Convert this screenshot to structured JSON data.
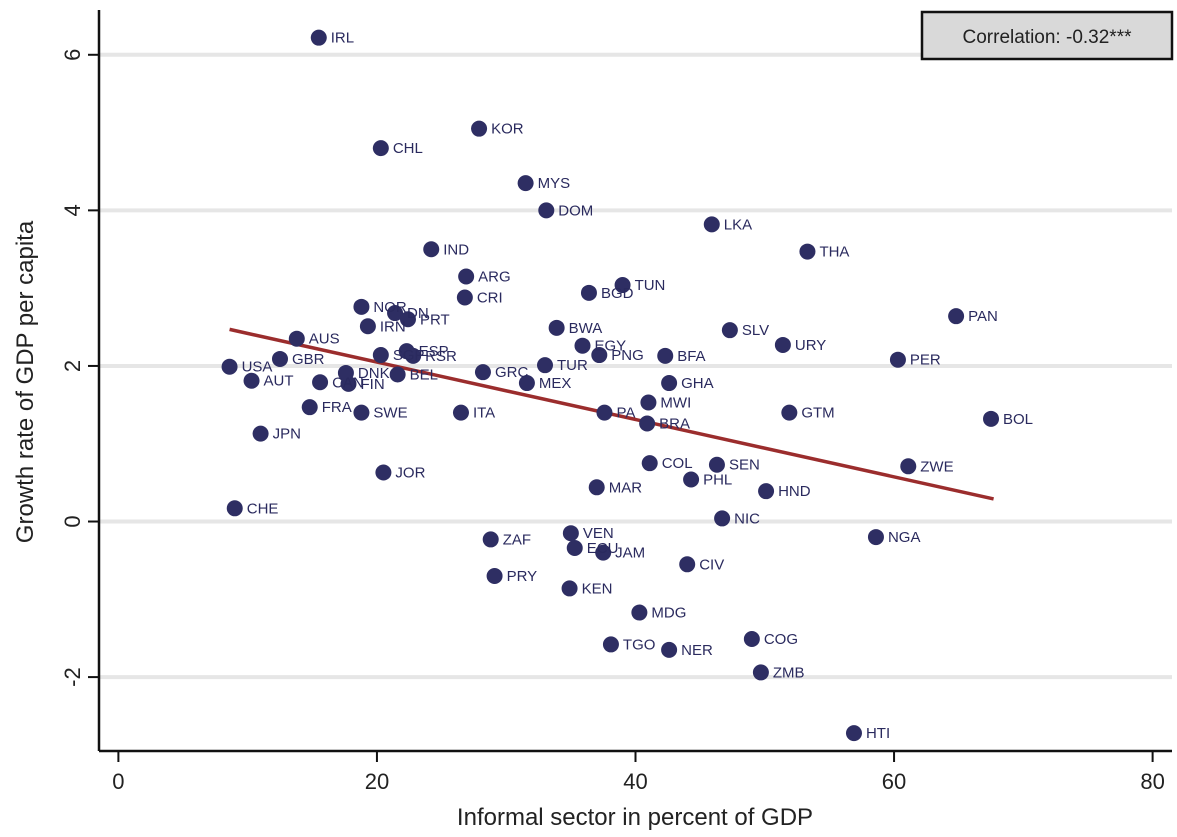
{
  "chart_data": {
    "type": "scatter",
    "xlabel": "Informal sector in percent of GDP",
    "ylabel": "Growth rate of GDP per capita",
    "xlim": [
      -1.5,
      81.5
    ],
    "ylim": [
      -2.95,
      6.55
    ],
    "xticks": [
      0,
      20,
      40,
      60,
      80
    ],
    "yticks": [
      -2,
      0,
      2,
      4,
      6
    ],
    "grid": "horizontal",
    "annotation": "Correlation: -0.32***",
    "point_color": "#2e2e63",
    "fit_color": "#9b2d2d",
    "fit_line": {
      "x": [
        8.6,
        67.7
      ],
      "y": [
        2.47,
        0.29
      ]
    },
    "points": [
      {
        "label": "IRL",
        "x": 15.5,
        "y": 6.22
      },
      {
        "label": "KOR",
        "x": 27.9,
        "y": 5.05
      },
      {
        "label": "CHL",
        "x": 20.3,
        "y": 4.8
      },
      {
        "label": "MYS",
        "x": 31.5,
        "y": 4.35
      },
      {
        "label": "DOM",
        "x": 33.1,
        "y": 4.0
      },
      {
        "label": "LKA",
        "x": 45.9,
        "y": 3.82
      },
      {
        "label": "THA",
        "x": 53.3,
        "y": 3.47
      },
      {
        "label": "IND",
        "x": 24.2,
        "y": 3.5
      },
      {
        "label": "ARG",
        "x": 26.9,
        "y": 3.15
      },
      {
        "label": "TUN",
        "x": 39.0,
        "y": 3.04
      },
      {
        "label": "BGD",
        "x": 36.4,
        "y": 2.94
      },
      {
        "label": "CRI",
        "x": 26.8,
        "y": 2.88
      },
      {
        "label": "NOR",
        "x": 18.8,
        "y": 2.76
      },
      {
        "label": "DN",
        "x": 21.4,
        "y": 2.68
      },
      {
        "label": "PRT",
        "x": 22.4,
        "y": 2.6
      },
      {
        "label": "IRN",
        "x": 19.3,
        "y": 2.51
      },
      {
        "label": "PAN",
        "x": 64.8,
        "y": 2.64
      },
      {
        "label": "BWA",
        "x": 33.9,
        "y": 2.49
      },
      {
        "label": "SLV",
        "x": 47.3,
        "y": 2.46
      },
      {
        "label": "AUS",
        "x": 13.8,
        "y": 2.35
      },
      {
        "label": "URY",
        "x": 51.4,
        "y": 2.27
      },
      {
        "label": "EGY",
        "x": 35.9,
        "y": 2.26
      },
      {
        "label": "ESP",
        "x": 22.3,
        "y": 2.19
      },
      {
        "label": "PNG",
        "x": 37.2,
        "y": 2.14
      },
      {
        "label": "BFA",
        "x": 42.3,
        "y": 2.13
      },
      {
        "label": "RSR",
        "x": 22.8,
        "y": 2.13
      },
      {
        "label": "SGP",
        "x": 20.3,
        "y": 2.14
      },
      {
        "label": "PER",
        "x": 60.3,
        "y": 2.08
      },
      {
        "label": "GBR",
        "x": 12.5,
        "y": 2.09
      },
      {
        "label": "TUR",
        "x": 33.0,
        "y": 2.01
      },
      {
        "label": "USA",
        "x": 8.6,
        "y": 1.99
      },
      {
        "label": "GRC",
        "x": 28.2,
        "y": 1.92
      },
      {
        "label": "DNK",
        "x": 17.6,
        "y": 1.91
      },
      {
        "label": "BEL",
        "x": 21.6,
        "y": 1.89
      },
      {
        "label": "AUT",
        "x": 10.3,
        "y": 1.81
      },
      {
        "label": "CAN",
        "x": 15.6,
        "y": 1.79
      },
      {
        "label": "FIN",
        "x": 17.8,
        "y": 1.77
      },
      {
        "label": "MEX",
        "x": 31.6,
        "y": 1.78
      },
      {
        "label": "GHA",
        "x": 42.6,
        "y": 1.78
      },
      {
        "label": "MWI",
        "x": 41.0,
        "y": 1.53
      },
      {
        "label": "FRA",
        "x": 14.8,
        "y": 1.47
      },
      {
        "label": "SWE",
        "x": 18.8,
        "y": 1.4
      },
      {
        "label": "ITA",
        "x": 26.5,
        "y": 1.4
      },
      {
        "label": "PA",
        "x": 37.6,
        "y": 1.4
      },
      {
        "label": "GTM",
        "x": 51.9,
        "y": 1.4
      },
      {
        "label": "BOL",
        "x": 67.5,
        "y": 1.32
      },
      {
        "label": "BRA",
        "x": 40.9,
        "y": 1.26
      },
      {
        "label": "JPN",
        "x": 11.0,
        "y": 1.13
      },
      {
        "label": "COL",
        "x": 41.1,
        "y": 0.75
      },
      {
        "label": "SEN",
        "x": 46.3,
        "y": 0.73
      },
      {
        "label": "ZWE",
        "x": 61.1,
        "y": 0.71
      },
      {
        "label": "JOR",
        "x": 20.5,
        "y": 0.63
      },
      {
        "label": "PHL",
        "x": 44.3,
        "y": 0.54
      },
      {
        "label": "MAR",
        "x": 37.0,
        "y": 0.44
      },
      {
        "label": "HND",
        "x": 50.1,
        "y": 0.39
      },
      {
        "label": "CHE",
        "x": 9.0,
        "y": 0.17
      },
      {
        "label": "NIC",
        "x": 46.7,
        "y": 0.04
      },
      {
        "label": "VEN",
        "x": 35.0,
        "y": -0.15
      },
      {
        "label": "NGA",
        "x": 58.6,
        "y": -0.2
      },
      {
        "label": "ZAF",
        "x": 28.8,
        "y": -0.23
      },
      {
        "label": "ECU",
        "x": 35.3,
        "y": -0.34
      },
      {
        "label": "JAM",
        "x": 37.5,
        "y": -0.4
      },
      {
        "label": "CIV",
        "x": 44.0,
        "y": -0.55
      },
      {
        "label": "PRY",
        "x": 29.1,
        "y": -0.7
      },
      {
        "label": "KEN",
        "x": 34.9,
        "y": -0.86
      },
      {
        "label": "MDG",
        "x": 40.3,
        "y": -1.17
      },
      {
        "label": "COG",
        "x": 49.0,
        "y": -1.51
      },
      {
        "label": "TGO",
        "x": 38.1,
        "y": -1.58
      },
      {
        "label": "NER",
        "x": 42.6,
        "y": -1.65
      },
      {
        "label": "ZMB",
        "x": 49.7,
        "y": -1.94
      },
      {
        "label": "HTI",
        "x": 56.9,
        "y": -2.72
      }
    ]
  }
}
